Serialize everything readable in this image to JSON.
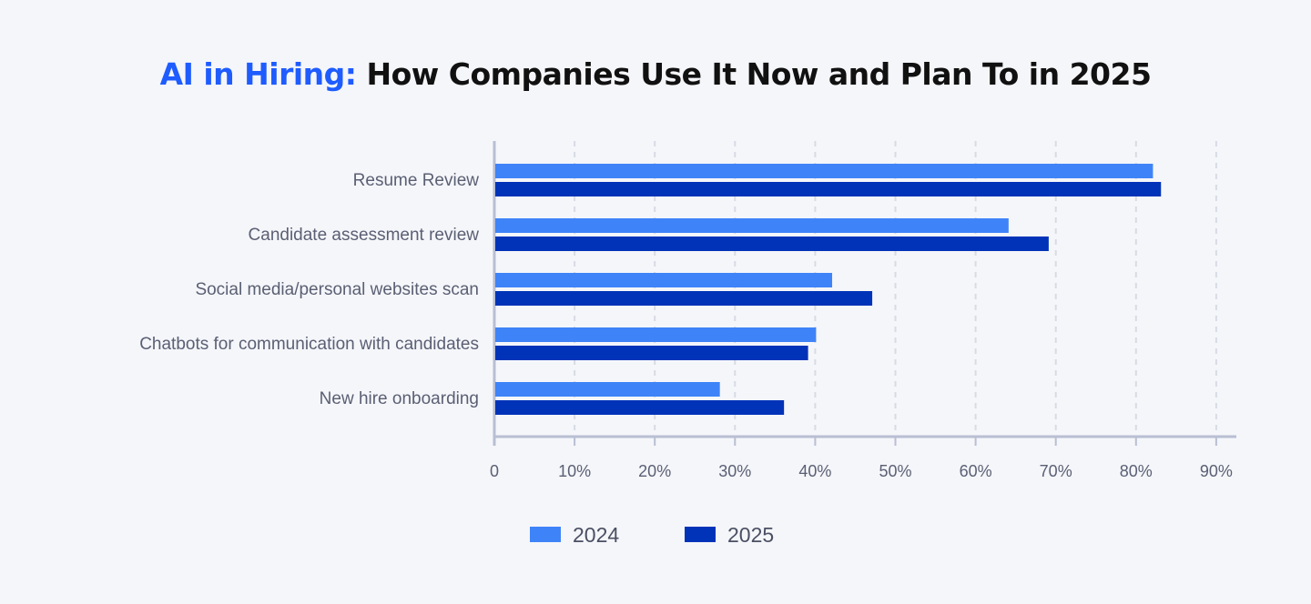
{
  "chart_data": {
    "type": "bar",
    "orientation": "horizontal",
    "title_accent": "AI in Hiring:",
    "title_rest": "How Companies Use It Now and Plan To in 2025",
    "categories": [
      "Resume Review",
      "Candidate assessment review",
      "Social media/personal websites scan",
      "Chatbots for communication with candidates",
      "New hire onboarding"
    ],
    "series": [
      {
        "name": "2024",
        "color": "#3f83f8",
        "values": [
          82,
          64,
          42,
          40,
          28
        ]
      },
      {
        "name": "2025",
        "color": "#0033b8",
        "values": [
          83,
          69,
          47,
          39,
          36
        ]
      }
    ],
    "x_ticks": [
      "0",
      "10%",
      "20%",
      "30%",
      "40%",
      "50%",
      "60%",
      "70%",
      "80%",
      "90%"
    ],
    "xlim": [
      0,
      90
    ],
    "grid": "vertical dashed",
    "legend_position": "bottom",
    "colors": {
      "title_accent": "#1f5cff",
      "axis": "#b9bfd3",
      "grid": "#d8dbe4"
    }
  }
}
